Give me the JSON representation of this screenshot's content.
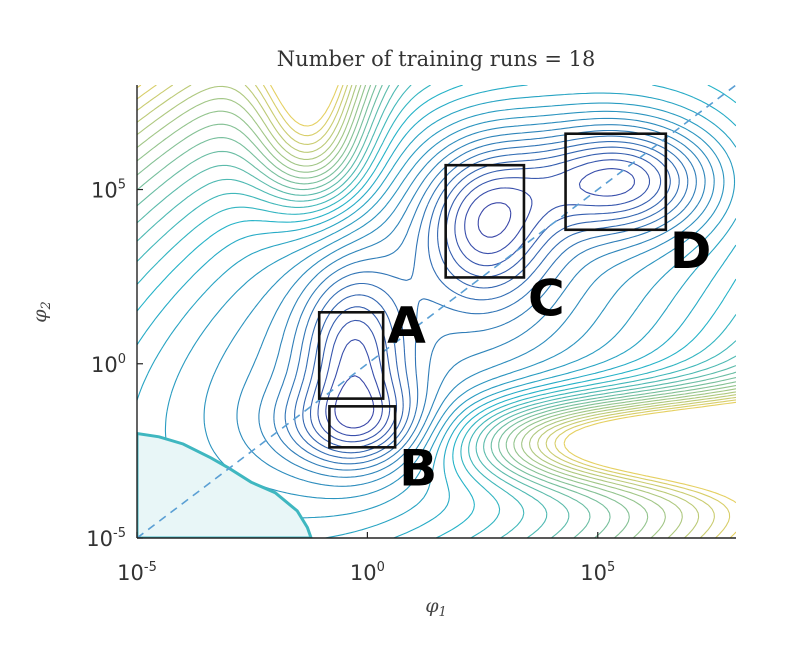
{
  "chart_data": {
    "type": "contour",
    "title": "Number of training runs = 18",
    "xlabel": "φ1",
    "ylabel": "φ2",
    "xscale": "log",
    "yscale": "log",
    "xlim": [
      1e-05,
      100000000.0
    ],
    "ylim": [
      1e-05,
      100000000.0
    ],
    "x_ticks": [
      {
        "base": "10",
        "exp": "-5"
      },
      {
        "base": "10",
        "exp": "0"
      },
      {
        "base": "10",
        "exp": "5"
      }
    ],
    "y_ticks": [
      {
        "base": "10",
        "exp": "5"
      },
      {
        "base": "10",
        "exp": "0"
      },
      {
        "base": "10",
        "exp": "-5"
      }
    ],
    "diagonal_reference": "dashed line φ2 = φ1",
    "boxes": [
      {
        "label": "A",
        "x": [
          0.09,
          2.2
        ],
        "y": [
          0.1,
          30
        ]
      },
      {
        "label": "B",
        "x": [
          0.15,
          4
        ],
        "y": [
          0.004,
          0.06
        ]
      },
      {
        "label": "C",
        "x": [
          50,
          2500
        ],
        "y": [
          300,
          500000.0
        ]
      },
      {
        "label": "D",
        "x": [
          20000.0,
          3000000.0
        ],
        "y": [
          7000.0,
          4000000.0
        ]
      }
    ],
    "minima": [
      {
        "label": "A",
        "x": 0.5,
        "y": 2
      },
      {
        "label": "B",
        "x": 0.8,
        "y": 0.015
      },
      {
        "label": "C",
        "x": 400,
        "y": 12000
      },
      {
        "label": "D",
        "x": 300000,
        "y": 200000
      }
    ],
    "grid": false,
    "colormap": {
      "low": "#3b3fa6",
      "mid": "#25b3c8",
      "high": "#f3d25a"
    }
  }
}
